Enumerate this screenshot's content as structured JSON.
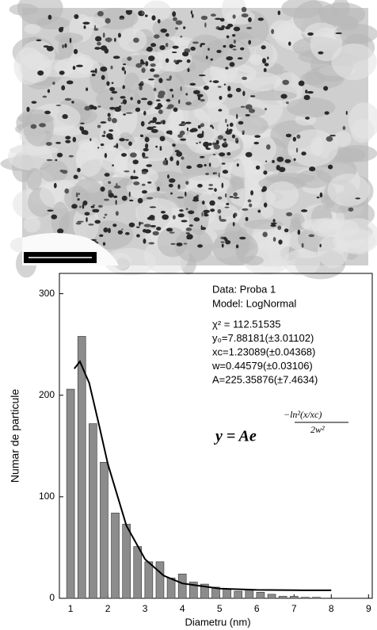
{
  "chart_data": {
    "type": "bar",
    "x_label": "Diametru (nm)",
    "y_label": "Numar de particule",
    "x": [
      1.0,
      1.3,
      1.6,
      1.9,
      2.2,
      2.5,
      2.8,
      3.1,
      3.4,
      3.7,
      4.0,
      4.3,
      4.6,
      4.9,
      5.2,
      5.5,
      5.8,
      6.1,
      6.4,
      6.7,
      7.0,
      7.3,
      7.6
    ],
    "values": [
      206,
      258,
      172,
      134,
      84,
      73,
      51,
      36,
      36,
      20,
      24,
      16,
      14,
      11,
      9,
      7,
      8,
      6,
      4,
      2,
      2,
      1,
      1
    ],
    "color": "#8c8c8c",
    "fit": {
      "color": "#000000",
      "x": [
        1.1,
        1.25,
        1.5,
        1.75,
        2.0,
        2.5,
        3.0,
        3.5,
        4.0,
        5.0,
        6.0,
        7.0,
        8.0
      ],
      "values": [
        226.2,
        233.2,
        212.1,
        172.9,
        132.5,
        71.6,
        38.5,
        22.3,
        14.7,
        9.5,
        8.3,
        8.0,
        7.9
      ]
    },
    "xlim": [
      0.7,
      9.1
    ],
    "ylim": [
      0,
      320
    ],
    "xticks": [
      1,
      2,
      3,
      4,
      5,
      6,
      7,
      8,
      9
    ],
    "yticks": [
      0,
      100,
      200,
      300
    ],
    "annotations": [
      "Data: Proba 1",
      "Model: LogNormal",
      "χ² = 112.51535",
      "y₀=7.88181(±3.01102)",
      "xc=1.23089(±0.04368)",
      "w=0.44579(±0.03106)",
      "A=225.35876(±7.4634)"
    ],
    "equation": {
      "main": "y = Ae",
      "numerator": "−ln²(x/xc)",
      "denominator": "2w²"
    }
  }
}
